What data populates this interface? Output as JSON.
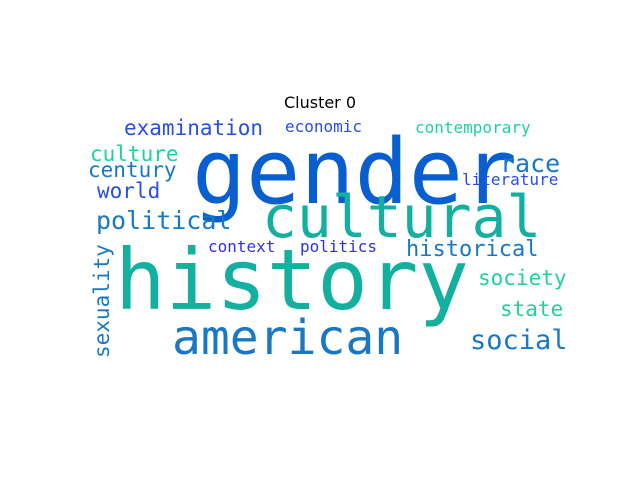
{
  "title": "Cluster 0",
  "palette": {
    "blue_dark": "#0a5fd0",
    "teal": "#13b0a0",
    "blue_mid": "#1a78c2",
    "blue_royal": "#2a4de0",
    "indigo": "#3030e8",
    "aqua": "#20d0a0"
  },
  "words": [
    {
      "text": "gender",
      "color": "#0a5fd0",
      "orientation": "horizontal"
    },
    {
      "text": "history",
      "color": "#13b0a0",
      "orientation": "horizontal"
    },
    {
      "text": "cultural",
      "color": "#13b0a0",
      "orientation": "horizontal"
    },
    {
      "text": "american",
      "color": "#1a78c2",
      "orientation": "horizontal"
    },
    {
      "text": "political",
      "color": "#1a78c2",
      "orientation": "horizontal"
    },
    {
      "text": "examination",
      "color": "#2a4de0",
      "orientation": "horizontal"
    },
    {
      "text": "economic",
      "color": "#2a4de0",
      "orientation": "horizontal"
    },
    {
      "text": "contemporary",
      "color": "#20d0a0",
      "orientation": "horizontal"
    },
    {
      "text": "culture",
      "color": "#20d0a0",
      "orientation": "horizontal"
    },
    {
      "text": "century",
      "color": "#1a78c2",
      "orientation": "horizontal"
    },
    {
      "text": "world",
      "color": "#2a4de0",
      "orientation": "horizontal"
    },
    {
      "text": "race",
      "color": "#1a78c2",
      "orientation": "horizontal"
    },
    {
      "text": "literature",
      "color": "#2a4de0",
      "orientation": "horizontal"
    },
    {
      "text": "historical",
      "color": "#1a78c2",
      "orientation": "horizontal"
    },
    {
      "text": "context",
      "color": "#3030e8",
      "orientation": "horizontal"
    },
    {
      "text": "politics",
      "color": "#3030e8",
      "orientation": "horizontal"
    },
    {
      "text": "society",
      "color": "#20d0a0",
      "orientation": "horizontal"
    },
    {
      "text": "state",
      "color": "#20d0a0",
      "orientation": "horizontal"
    },
    {
      "text": "social",
      "color": "#1a78c2",
      "orientation": "horizontal"
    },
    {
      "text": "sexuality",
      "color": "#1a78c2",
      "orientation": "vertical"
    }
  ]
}
